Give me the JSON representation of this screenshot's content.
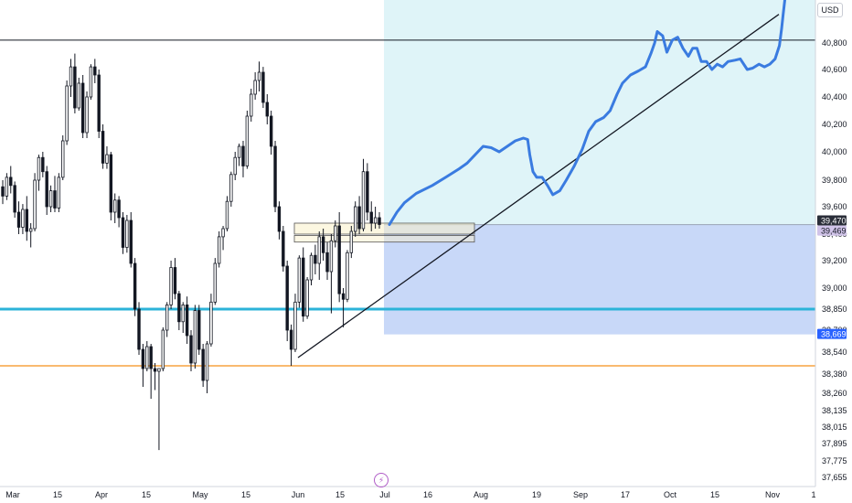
{
  "currency": "USD",
  "chart_data": {
    "type": "candlestick",
    "y_ticks": [
      40800,
      40600,
      40400,
      40200,
      40000,
      39800,
      39600,
      39400,
      39200,
      39000,
      38850,
      38700,
      38540,
      38380,
      38260,
      38135,
      38015,
      37895,
      37775,
      37655
    ],
    "y_tick_labels": [
      "40,800",
      "40,600",
      "40,400",
      "40,200",
      "40,000",
      "39,800",
      "39,600",
      "39,400",
      "39,200",
      "39,000",
      "38,850",
      "38,700",
      "38,540",
      "38,380",
      "38,260",
      "38,135",
      "38,015",
      "37,895",
      "37,775",
      "37,655"
    ],
    "x_tick_labels": [
      "Mar",
      "15",
      "Apr",
      "15",
      "May",
      "15",
      "Jun",
      "15",
      "Jul",
      "16",
      "Aug",
      "19",
      "Sep",
      "17",
      "Oct",
      "15",
      "Nov",
      "1"
    ],
    "price_labels": [
      {
        "value": 39470,
        "text": "39,470",
        "bg": "#2a2e39",
        "fg": "#ffffff"
      },
      {
        "value": 39469,
        "text": "39,469",
        "bg": "#d1c4e9",
        "fg": "#131722"
      },
      {
        "value": 38669,
        "text": "38,669",
        "bg": "#2962ff",
        "fg": "#ffffff"
      }
    ],
    "horizontal_levels": [
      {
        "name": "resistance",
        "value": 40820,
        "color": "#131722"
      },
      {
        "name": "support",
        "value": 38850,
        "color": "#2cb3d8"
      },
      {
        "name": "low-level",
        "value": 38440,
        "color": "#f7a440"
      }
    ],
    "position_zones": {
      "entry": 39469,
      "target_top": 41100,
      "stop": 38669,
      "target_color": "#dff4f8",
      "stop_color": "#c8d8f8"
    },
    "colors": {
      "candle": "#131722",
      "projection": "#3a7be0",
      "trendline": "#131722"
    },
    "candles": [
      [
        39750,
        39800,
        39620,
        39680
      ],
      [
        39680,
        39850,
        39650,
        39820
      ],
      [
        39820,
        39900,
        39700,
        39760
      ],
      [
        39760,
        39790,
        39520,
        39560
      ],
      [
        39560,
        39640,
        39400,
        39450
      ],
      [
        39450,
        39620,
        39400,
        39580
      ],
      [
        39580,
        39680,
        39350,
        39420
      ],
      [
        39420,
        39480,
        39300,
        39440
      ],
      [
        39440,
        39850,
        39420,
        39800
      ],
      [
        39800,
        39980,
        39720,
        39960
      ],
      [
        39960,
        40000,
        39820,
        39860
      ],
      [
        39860,
        39900,
        39540,
        39600
      ],
      [
        39600,
        39760,
        39560,
        39720
      ],
      [
        39720,
        39830,
        39560,
        39590
      ],
      [
        39590,
        39850,
        39560,
        39820
      ],
      [
        39820,
        40120,
        39800,
        40080
      ],
      [
        40080,
        40520,
        40050,
        40480
      ],
      [
        40480,
        40680,
        40400,
        40620
      ],
      [
        40620,
        40720,
        40280,
        40320
      ],
      [
        40320,
        40540,
        40300,
        40500
      ],
      [
        40500,
        40560,
        40100,
        40140
      ],
      [
        40140,
        40440,
        40100,
        40400
      ],
      [
        40400,
        40640,
        40380,
        40620
      ],
      [
        40620,
        40680,
        40500,
        40560
      ],
      [
        40560,
        40600,
        40100,
        40150
      ],
      [
        40150,
        40200,
        39880,
        39920
      ],
      [
        39920,
        40040,
        39880,
        39980
      ],
      [
        39980,
        40000,
        39500,
        39560
      ],
      [
        39560,
        39700,
        39480,
        39650
      ],
      [
        39650,
        39680,
        39450,
        39520
      ],
      [
        39520,
        39560,
        39250,
        39300
      ],
      [
        39300,
        39540,
        39260,
        39500
      ],
      [
        39500,
        39560,
        39150,
        39180
      ],
      [
        39180,
        39220,
        38800,
        38850
      ],
      [
        38850,
        38900,
        38520,
        38560
      ],
      [
        38560,
        38600,
        38300,
        38420
      ],
      [
        38420,
        38620,
        38400,
        38580
      ],
      [
        38580,
        38600,
        38220,
        38420
      ],
      [
        38420,
        38460,
        38280,
        38400
      ],
      [
        38400,
        38420,
        37850,
        38420
      ],
      [
        38420,
        38720,
        38400,
        38700
      ],
      [
        38700,
        38900,
        38650,
        38880
      ],
      [
        38880,
        39200,
        38850,
        39150
      ],
      [
        39150,
        39220,
        38920,
        38960
      ],
      [
        38960,
        38980,
        38700,
        38760
      ],
      [
        38760,
        38900,
        38680,
        38880
      ],
      [
        38880,
        38940,
        38600,
        38660
      ],
      [
        38660,
        38700,
        38400,
        38460
      ],
      [
        38460,
        38880,
        38420,
        38840
      ],
      [
        38840,
        38880,
        38520,
        38560
      ],
      [
        38560,
        38600,
        38300,
        38340
      ],
      [
        38340,
        38620,
        38260,
        38600
      ],
      [
        38600,
        38960,
        38580,
        38900
      ],
      [
        38900,
        39220,
        38880,
        39180
      ],
      [
        39180,
        39420,
        39150,
        39380
      ],
      [
        39380,
        39460,
        39280,
        39440
      ],
      [
        39440,
        39680,
        39420,
        39640
      ],
      [
        39640,
        39860,
        39600,
        39840
      ],
      [
        39840,
        40000,
        39800,
        39960
      ],
      [
        39960,
        40060,
        39900,
        40040
      ],
      [
        40040,
        40080,
        39820,
        39900
      ],
      [
        39900,
        40300,
        39880,
        40260
      ],
      [
        40260,
        40460,
        40220,
        40420
      ],
      [
        40420,
        40580,
        40380,
        40520
      ],
      [
        40520,
        40660,
        40440,
        40580
      ],
      [
        40580,
        40620,
        40320,
        40360
      ],
      [
        40360,
        40420,
        40200,
        40260
      ],
      [
        40260,
        40300,
        39980,
        40040
      ],
      [
        40040,
        40080,
        39560,
        39600
      ],
      [
        39600,
        39640,
        39360,
        39420
      ],
      [
        39420,
        39460,
        39120,
        39160
      ],
      [
        39160,
        39200,
        38620,
        38700
      ],
      [
        38700,
        38740,
        38440,
        38560
      ],
      [
        38560,
        38960,
        38540,
        38900
      ],
      [
        38900,
        39240,
        38860,
        39220
      ],
      [
        39220,
        39300,
        38760,
        38800
      ],
      [
        38800,
        39080,
        38780,
        39060
      ],
      [
        39060,
        39260,
        39020,
        39240
      ],
      [
        39240,
        39320,
        39100,
        39180
      ],
      [
        39180,
        39420,
        39060,
        39380
      ],
      [
        39380,
        39440,
        39200,
        39260
      ],
      [
        39260,
        39340,
        39060,
        39120
      ],
      [
        39120,
        39400,
        38820,
        39350
      ],
      [
        39350,
        39500,
        39300,
        39460
      ],
      [
        39460,
        39560,
        38900,
        38960
      ],
      [
        38960,
        39000,
        38720,
        38920
      ],
      [
        38920,
        39280,
        38900,
        39260
      ],
      [
        39260,
        39460,
        39220,
        39420
      ],
      [
        39420,
        39640,
        39380,
        39600
      ],
      [
        39600,
        39680,
        39400,
        39440
      ],
      [
        39440,
        39950,
        39420,
        39860
      ],
      [
        39860,
        39920,
        39500,
        39560
      ],
      [
        39560,
        39640,
        39420,
        39480
      ],
      [
        39480,
        39600,
        39440,
        39520
      ],
      [
        39520,
        39560,
        39440,
        39470
      ]
    ],
    "projection": [
      [
        0.0,
        39470
      ],
      [
        0.014,
        39560
      ],
      [
        0.028,
        39630
      ],
      [
        0.05,
        39700
      ],
      [
        0.08,
        39760
      ],
      [
        0.105,
        39820
      ],
      [
        0.13,
        39880
      ],
      [
        0.145,
        39920
      ],
      [
        0.16,
        39980
      ],
      [
        0.175,
        40040
      ],
      [
        0.19,
        40030
      ],
      [
        0.205,
        40000
      ],
      [
        0.22,
        40040
      ],
      [
        0.235,
        40080
      ],
      [
        0.25,
        40100
      ],
      [
        0.258,
        40090
      ],
      [
        0.262,
        39980
      ],
      [
        0.268,
        39860
      ],
      [
        0.275,
        39820
      ],
      [
        0.285,
        39820
      ],
      [
        0.295,
        39760
      ],
      [
        0.305,
        39690
      ],
      [
        0.318,
        39720
      ],
      [
        0.33,
        39800
      ],
      [
        0.345,
        39900
      ],
      [
        0.36,
        40020
      ],
      [
        0.372,
        40150
      ],
      [
        0.385,
        40220
      ],
      [
        0.4,
        40250
      ],
      [
        0.412,
        40300
      ],
      [
        0.425,
        40420
      ],
      [
        0.435,
        40500
      ],
      [
        0.45,
        40560
      ],
      [
        0.465,
        40590
      ],
      [
        0.478,
        40620
      ],
      [
        0.488,
        40720
      ],
      [
        0.495,
        40800
      ],
      [
        0.5,
        40880
      ],
      [
        0.51,
        40850
      ],
      [
        0.518,
        40730
      ],
      [
        0.528,
        40820
      ],
      [
        0.538,
        40840
      ],
      [
        0.548,
        40760
      ],
      [
        0.558,
        40700
      ],
      [
        0.566,
        40760
      ],
      [
        0.574,
        40760
      ],
      [
        0.582,
        40660
      ],
      [
        0.592,
        40660
      ],
      [
        0.602,
        40600
      ],
      [
        0.612,
        40640
      ],
      [
        0.622,
        40620
      ],
      [
        0.632,
        40660
      ],
      [
        0.645,
        40670
      ],
      [
        0.655,
        40680
      ],
      [
        0.668,
        40600
      ],
      [
        0.678,
        40610
      ],
      [
        0.69,
        40640
      ],
      [
        0.7,
        40620
      ],
      [
        0.71,
        40640
      ],
      [
        0.72,
        40680
      ],
      [
        0.728,
        40780
      ],
      [
        0.732,
        40900
      ],
      [
        0.735,
        41000
      ],
      [
        0.738,
        41100
      ]
    ],
    "trendline": {
      "start": 38500,
      "end": 41000
    },
    "zone_rectangles": [
      {
        "top": 39480,
        "bottom": 39400
      },
      {
        "top": 39390,
        "bottom": 39340
      }
    ]
  }
}
